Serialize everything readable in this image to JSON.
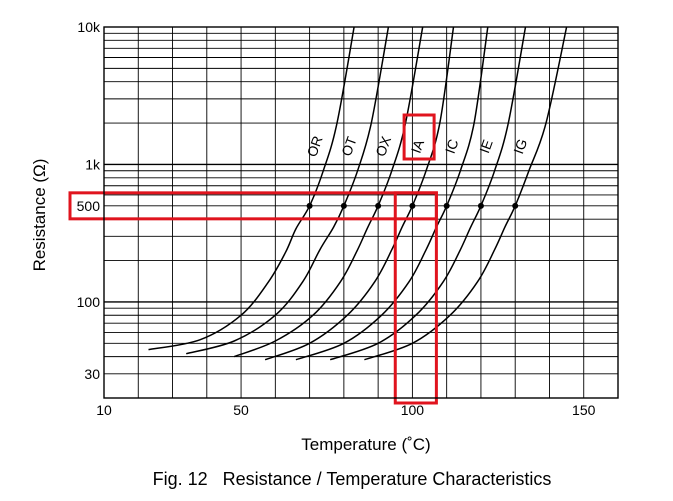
{
  "chart_data": {
    "type": "line",
    "caption": "Fig. 12   Resistance / Temperature Characteristics",
    "xlabel": "Temperature (˚C)",
    "ylabel": "Resistance  (Ω)",
    "x_scale": "linear",
    "y_scale": "log",
    "xlim": [
      10,
      160
    ],
    "ylim": [
      20,
      10000
    ],
    "x_ticks": [
      {
        "value": 10,
        "label": "10"
      },
      {
        "value": 50,
        "label": "50"
      },
      {
        "value": 100,
        "label": "100"
      },
      {
        "value": 150,
        "label": "150"
      }
    ],
    "y_ticks": [
      {
        "value": 10000,
        "label": "10k"
      },
      {
        "value": 1000,
        "label": "1k"
      },
      {
        "value": 500,
        "label": "500"
      },
      {
        "value": 100,
        "label": "100"
      },
      {
        "value": 30,
        "label": "30"
      }
    ],
    "grid": true,
    "series": [
      {
        "name": "OR",
        "x": [
          23,
          38,
          50,
          58,
          63,
          66,
          70,
          74,
          78,
          83
        ],
        "y": [
          45,
          53,
          80,
          140,
          230,
          340,
          500,
          900,
          2000,
          10000
        ]
      },
      {
        "name": "OT",
        "x": [
          34,
          48,
          60,
          68,
          73,
          77,
          80,
          84,
          88,
          93
        ],
        "y": [
          42,
          52,
          80,
          140,
          240,
          350,
          500,
          900,
          2000,
          10000
        ]
      },
      {
        "name": "OX",
        "x": [
          48,
          60,
          71,
          79,
          84,
          87,
          90,
          94,
          98,
          103
        ],
        "y": [
          40,
          52,
          80,
          140,
          240,
          350,
          500,
          900,
          2000,
          10000
        ]
      },
      {
        "name": "IA",
        "x": [
          57,
          70,
          81,
          89,
          94,
          97,
          100,
          104,
          108,
          112
        ],
        "y": [
          38,
          50,
          80,
          140,
          240,
          350,
          500,
          900,
          2000,
          10000
        ]
      },
      {
        "name": "IC",
        "x": [
          66,
          80,
          91,
          99,
          104,
          107,
          110,
          114,
          118,
          122
        ],
        "y": [
          38,
          50,
          80,
          140,
          240,
          350,
          500,
          900,
          2000,
          10000
        ]
      },
      {
        "name": "IE",
        "x": [
          76,
          90,
          101,
          109,
          114,
          117,
          120,
          124,
          128,
          133
        ],
        "y": [
          38,
          50,
          80,
          140,
          240,
          350,
          500,
          900,
          2000,
          10000
        ]
      },
      {
        "name": "IG",
        "x": [
          86,
          100,
          111,
          119,
          124,
          127,
          130,
          134,
          139,
          145
        ],
        "y": [
          38,
          50,
          80,
          140,
          240,
          350,
          500,
          900,
          2000,
          10000
        ]
      }
    ],
    "marked_points": [
      {
        "series": "OR",
        "x": 70,
        "y": 500
      },
      {
        "series": "OT",
        "x": 80,
        "y": 500
      },
      {
        "series": "OX",
        "x": 90,
        "y": 500
      },
      {
        "series": "IA",
        "x": 100,
        "y": 500
      },
      {
        "series": "IC",
        "x": 110,
        "y": 500
      },
      {
        "series": "IE",
        "x": 120,
        "y": 500
      },
      {
        "series": "IG",
        "x": 130,
        "y": 500
      }
    ],
    "highlights": [
      {
        "kind": "horizontal-band",
        "y": 500,
        "x_from": 10,
        "x_to": 107
      },
      {
        "kind": "vertical-band",
        "x_from": 95,
        "x_to": 107,
        "y_from": 20,
        "y_to": 500
      },
      {
        "kind": "label-box",
        "series": "IA"
      }
    ],
    "colors": {
      "line": "#000000",
      "grid": "#000000",
      "highlight": "#e0141e",
      "background": "#ffffff"
    }
  }
}
